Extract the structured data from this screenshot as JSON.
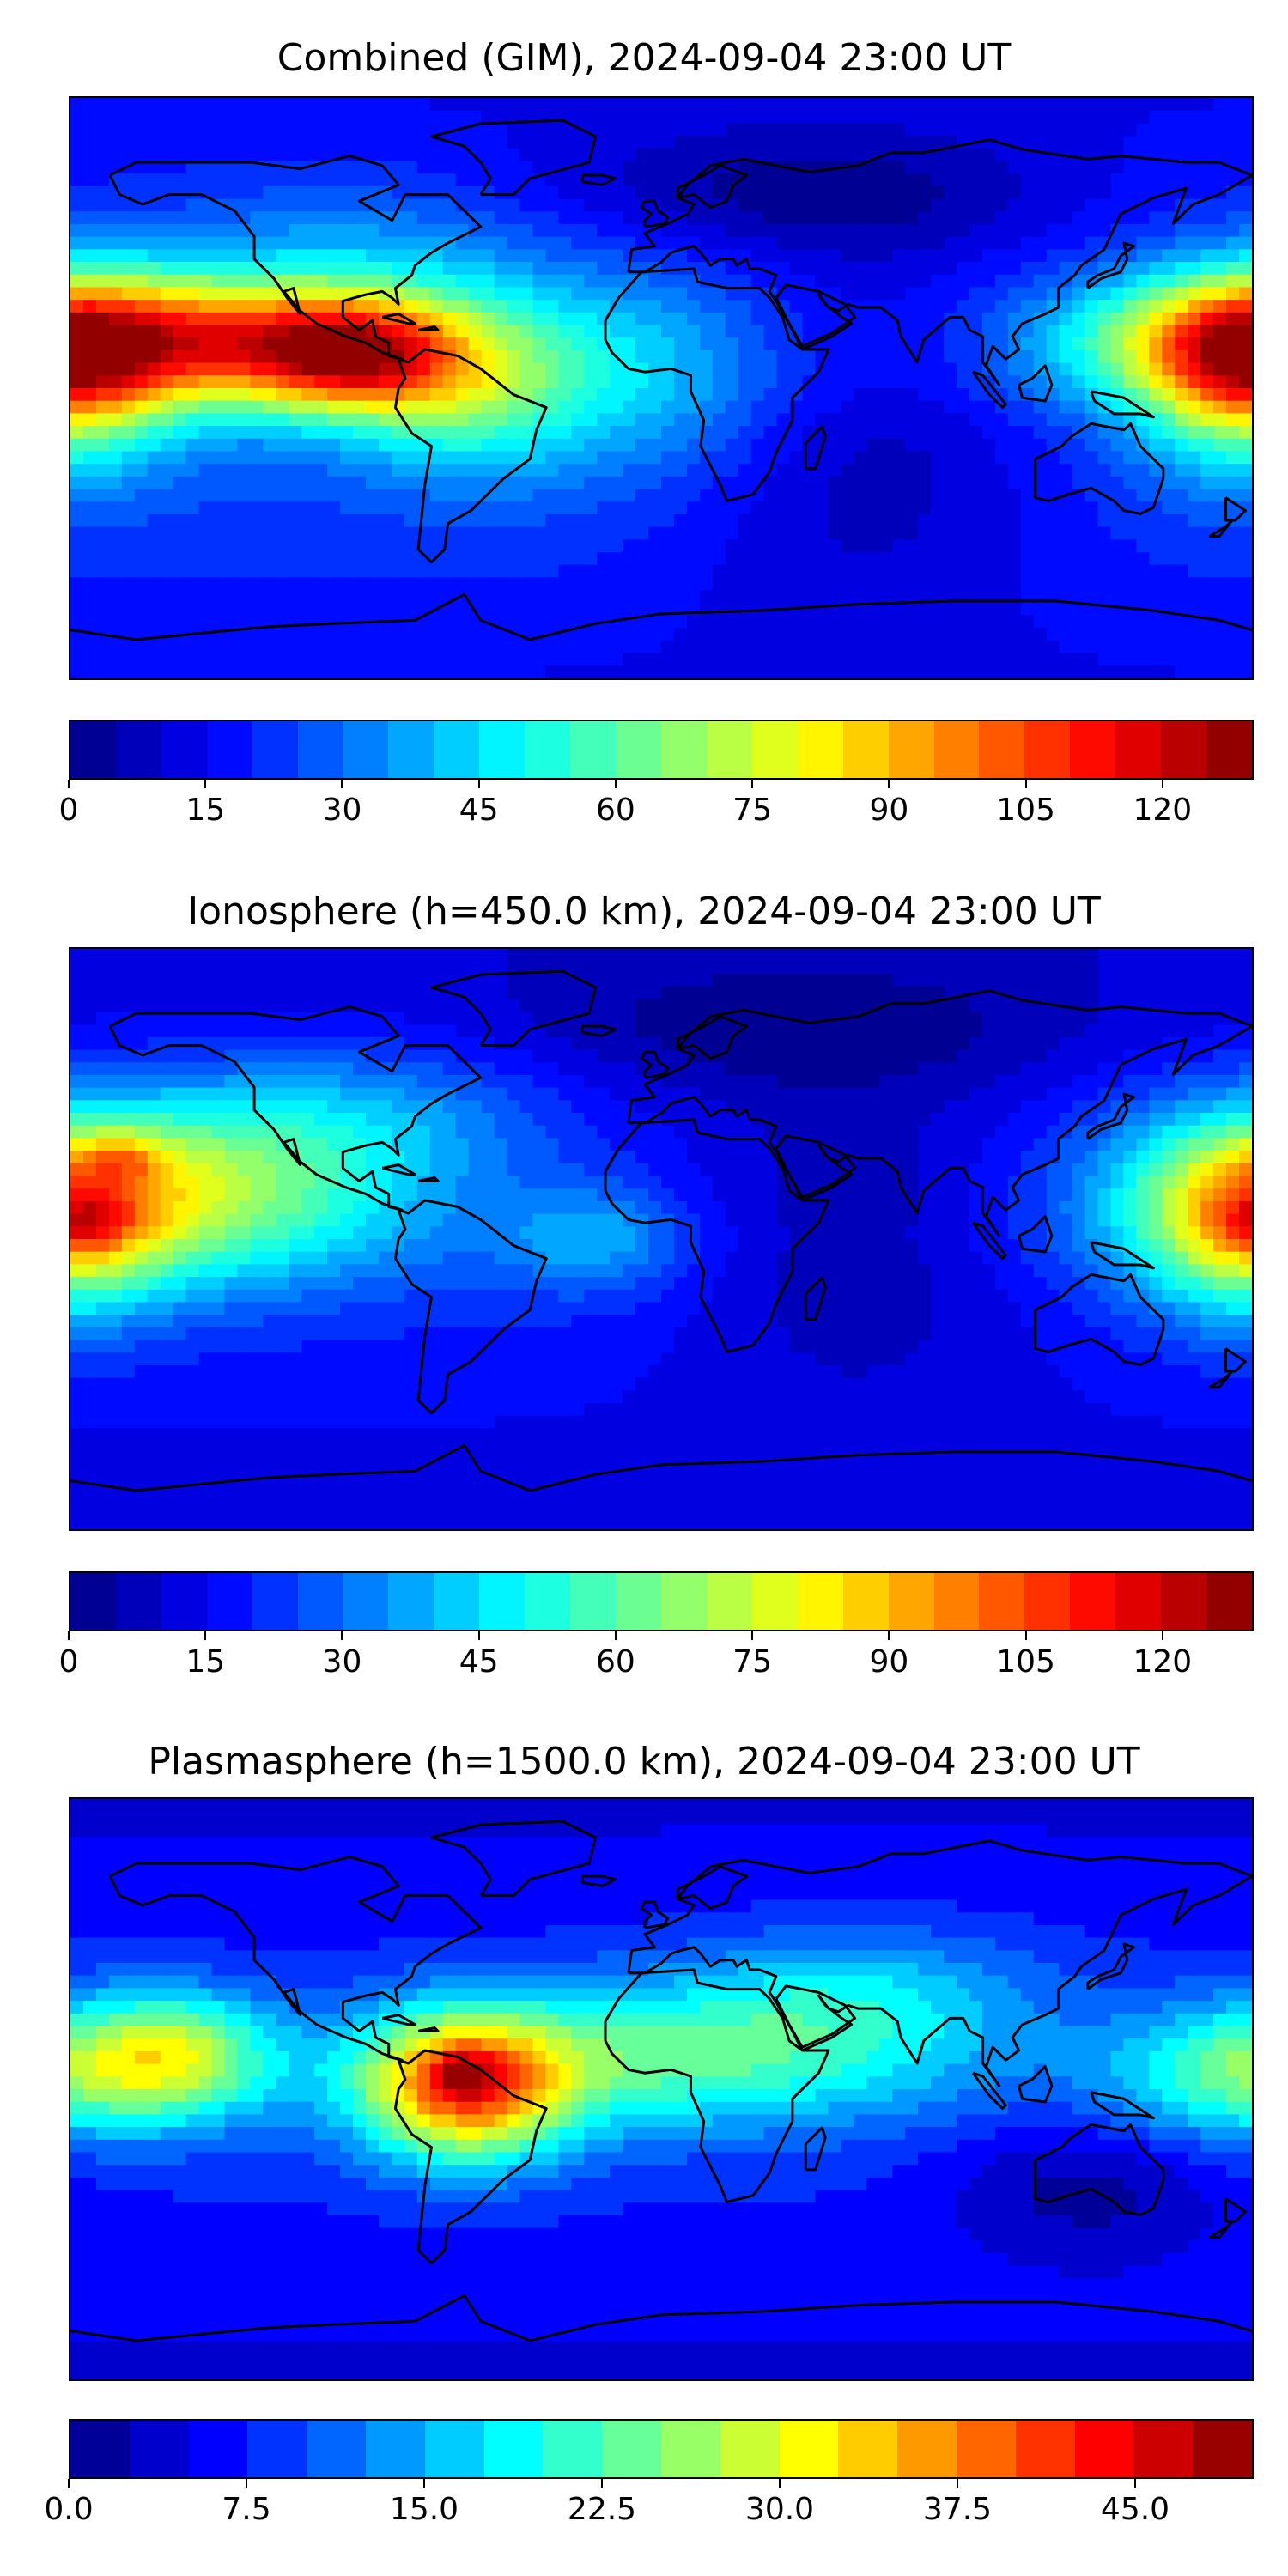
{
  "panels": [
    {
      "title": "Combined (GIM), 2024-09-04 23:00 UT",
      "colorbar": {
        "min": 0,
        "max": 130,
        "levels": 26,
        "ticks": [
          "0",
          "15",
          "30",
          "45",
          "60",
          "75",
          "90",
          "105",
          "120"
        ],
        "tick_values": [
          0,
          15,
          30,
          45,
          60,
          75,
          90,
          105,
          120
        ]
      },
      "field": {
        "base": 30,
        "blobs": [
          {
            "lon": -150,
            "lat": 15,
            "amp": 78,
            "slon": 55,
            "slat": 14
          },
          {
            "lon": -95,
            "lat": 10,
            "amp": 55,
            "slon": 22,
            "slat": 12
          },
          {
            "lon": -60,
            "lat": 0,
            "amp": 30,
            "slon": 25,
            "slat": 18
          },
          {
            "lon": 178,
            "lat": 5,
            "amp": 55,
            "slon": 22,
            "slat": 20
          },
          {
            "lon": 0,
            "lat": 5,
            "amp": 18,
            "slon": 35,
            "slat": 25
          },
          {
            "lon": -90,
            "lat": 45,
            "amp": 12,
            "slon": 40,
            "slat": 15
          },
          {
            "lon": 60,
            "lat": -10,
            "amp": -20,
            "slon": 45,
            "slat": 40
          },
          {
            "lon": 40,
            "lat": 60,
            "amp": -15,
            "slon": 60,
            "slat": 15
          }
        ]
      }
    },
    {
      "title": "Ionosphere  (h=450.0 km), 2024-09-04 23:00 UT",
      "colorbar": {
        "min": 0,
        "max": 130,
        "levels": 26,
        "ticks": [
          "0",
          "15",
          "30",
          "45",
          "60",
          "75",
          "90",
          "105",
          "120"
        ],
        "tick_values": [
          0,
          15,
          30,
          45,
          60,
          75,
          90,
          105,
          120
        ]
      },
      "field": {
        "base": 22,
        "blobs": [
          {
            "lon": -150,
            "lat": 15,
            "amp": 52,
            "slon": 50,
            "slat": 20
          },
          {
            "lon": -165,
            "lat": 25,
            "amp": 18,
            "slon": 10,
            "slat": 6
          },
          {
            "lon": -175,
            "lat": 5,
            "amp": 18,
            "slon": 10,
            "slat": 6
          },
          {
            "lon": 178,
            "lat": 5,
            "amp": 45,
            "slon": 22,
            "slat": 20
          },
          {
            "lon": -90,
            "lat": 40,
            "amp": 15,
            "slon": 40,
            "slat": 15
          },
          {
            "lon": -20,
            "lat": 0,
            "amp": 18,
            "slon": 20,
            "slat": 12
          },
          {
            "lon": 60,
            "lat": 0,
            "amp": -14,
            "slon": 40,
            "slat": 35
          },
          {
            "lon": 40,
            "lat": 65,
            "amp": -12,
            "slon": 60,
            "slat": 15
          }
        ]
      }
    },
    {
      "title": "Plasmasphere (h=1500.0 km), 2024-09-04 23:00 UT",
      "colorbar": {
        "min": 0,
        "max": 50,
        "levels": 20,
        "ticks": [
          "0.0",
          "7.5",
          "15.0",
          "22.5",
          "30.0",
          "37.5",
          "45.0"
        ],
        "tick_values": [
          0,
          7.5,
          15,
          22.5,
          30,
          37.5,
          45
        ]
      },
      "field": {
        "base": 9,
        "blobs": [
          {
            "lon": -60,
            "lat": 0,
            "amp": 28,
            "slon": 22,
            "slat": 16
          },
          {
            "lon": -60,
            "lat": 5,
            "amp": 8,
            "slon": 6,
            "slat": 5
          },
          {
            "lon": -150,
            "lat": 10,
            "amp": 20,
            "slon": 22,
            "slat": 14
          },
          {
            "lon": 0,
            "lat": 10,
            "amp": 14,
            "slon": 60,
            "slat": 16
          },
          {
            "lon": 170,
            "lat": 5,
            "amp": 12,
            "slon": 25,
            "slat": 15
          },
          {
            "lon": 60,
            "lat": 30,
            "amp": 8,
            "slon": 40,
            "slat": 15
          },
          {
            "lon": 130,
            "lat": -30,
            "amp": -6,
            "slon": 30,
            "slat": 15
          }
        ]
      }
    }
  ],
  "colors": {
    "jet_stops": [
      "#00007f",
      "#0000ff",
      "#007fff",
      "#00ffff",
      "#7fff7f",
      "#ffff00",
      "#ff7f00",
      "#ff0000",
      "#7f0000"
    ],
    "coastline": "#000000"
  }
}
